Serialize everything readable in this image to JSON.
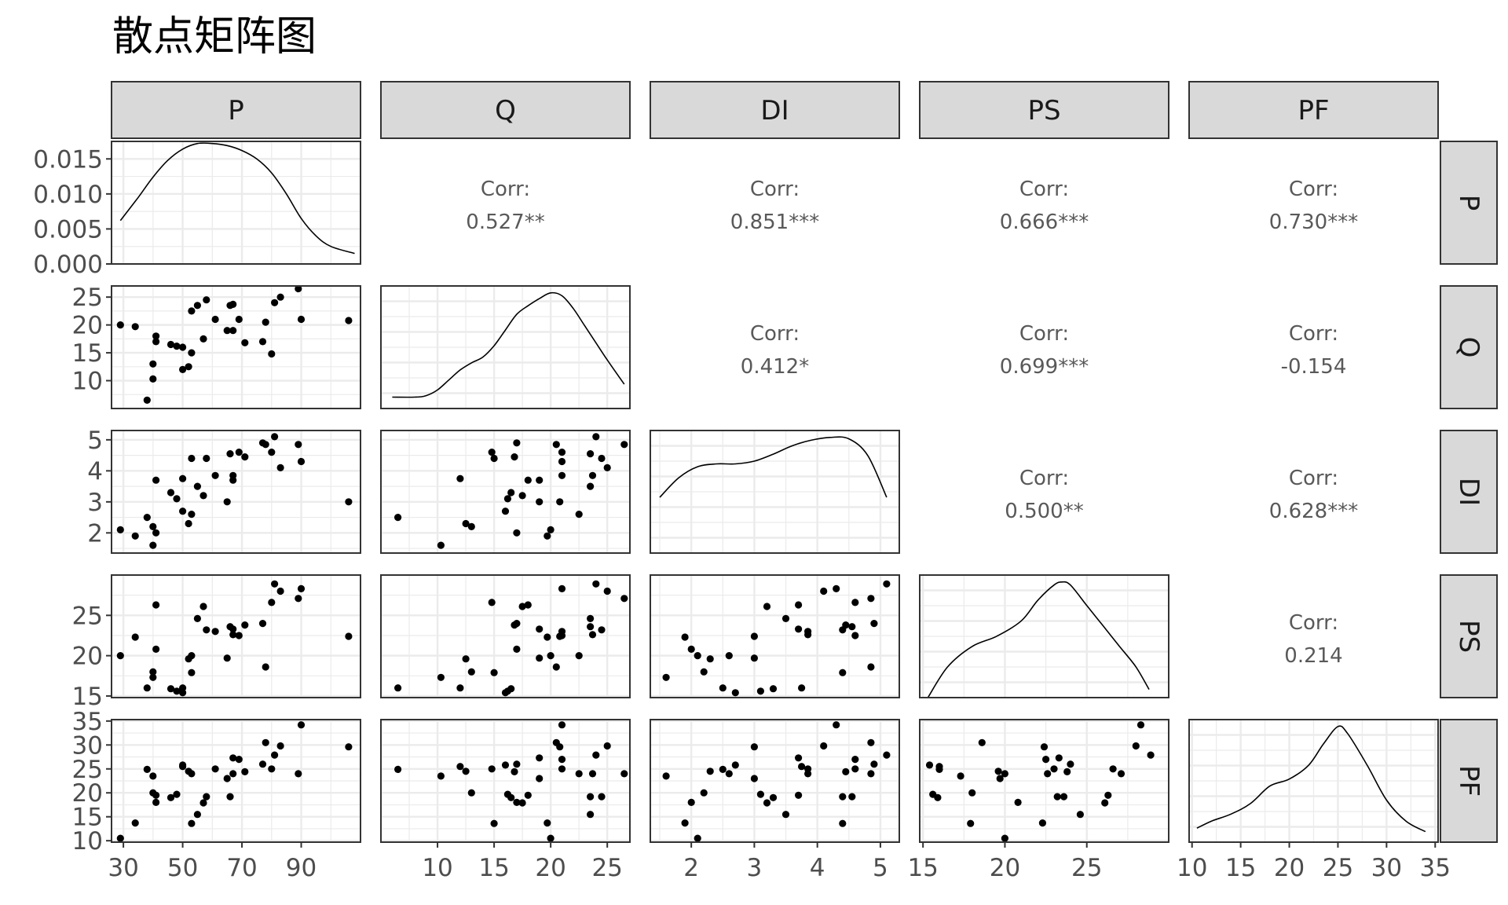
{
  "chart_data": {
    "type": "scatter",
    "title": "散点矩阵图",
    "variables": [
      "P",
      "Q",
      "DI",
      "PS",
      "PF"
    ],
    "grid": true,
    "strip_bg": "#d9d9d9",
    "panel_border": "#333333",
    "point_color": "#000000",
    "axes": {
      "P": {
        "range": [
          26,
          110
        ],
        "ticks": [
          30,
          50,
          70,
          90
        ],
        "tick_labels": [
          "30",
          "50",
          "70",
          "90"
        ]
      },
      "Q": {
        "range": [
          5,
          27
        ],
        "ticks": [
          10,
          15,
          20,
          25
        ],
        "tick_labels": [
          "10",
          "15",
          "20",
          "25"
        ]
      },
      "DI": {
        "range": [
          1.35,
          5.3
        ],
        "ticks": [
          2,
          3,
          4,
          5
        ],
        "tick_labels": [
          "2",
          "3",
          "4",
          "5"
        ]
      },
      "PS": {
        "range": [
          14.8,
          30.0
        ],
        "ticks": [
          15,
          20,
          25
        ],
        "tick_labels": [
          "15",
          "20",
          "25"
        ]
      },
      "PF": {
        "range": [
          9.7,
          35.3
        ],
        "ticks": [
          10,
          15,
          20,
          25,
          30,
          35
        ],
        "tick_labels": [
          "10",
          "15",
          "20",
          "25",
          "30",
          "35"
        ]
      }
    },
    "density_axis": {
      "range": [
        0,
        0.0175
      ],
      "ticks": [
        0,
        0.005,
        0.01,
        0.015
      ],
      "tick_labels": [
        "0.000",
        "0.005",
        "0.010",
        "0.015"
      ]
    },
    "correlations": [
      {
        "row": "P",
        "col": "Q",
        "label": "Corr:",
        "value": "0.527**"
      },
      {
        "row": "P",
        "col": "DI",
        "label": "Corr:",
        "value": "0.851***"
      },
      {
        "row": "P",
        "col": "PS",
        "label": "Corr:",
        "value": "0.666***"
      },
      {
        "row": "P",
        "col": "PF",
        "label": "Corr:",
        "value": "0.730***"
      },
      {
        "row": "Q",
        "col": "DI",
        "label": "Corr:",
        "value": "0.412*"
      },
      {
        "row": "Q",
        "col": "PS",
        "label": "Corr:",
        "value": "0.699***"
      },
      {
        "row": "Q",
        "col": "PF",
        "label": "Corr:",
        "value": "-0.154"
      },
      {
        "row": "DI",
        "col": "PS",
        "label": "Corr:",
        "value": "0.500**"
      },
      {
        "row": "DI",
        "col": "PF",
        "label": "Corr:",
        "value": "0.628***"
      },
      {
        "row": "PS",
        "col": "PF",
        "label": "Corr:",
        "value": "0.214"
      }
    ],
    "densities": {
      "P": {
        "x": [
          29,
          35,
          40,
          45,
          50,
          55,
          60,
          65,
          70,
          75,
          80,
          85,
          90,
          95,
          100,
          108
        ],
        "y": [
          0.0062,
          0.0095,
          0.0124,
          0.0148,
          0.0164,
          0.0172,
          0.0172,
          0.0169,
          0.0162,
          0.015,
          0.013,
          0.01,
          0.0065,
          0.004,
          0.0025,
          0.0015
        ]
      },
      "Q": {
        "x": [
          6,
          8,
          9,
          10,
          11,
          12,
          13,
          14,
          15,
          16,
          17,
          18,
          19,
          20,
          21,
          22,
          23,
          24,
          25,
          26.5
        ],
        "y": [
          0.04,
          0.04,
          0.045,
          0.065,
          0.1,
          0.135,
          0.16,
          0.18,
          0.22,
          0.275,
          0.33,
          0.36,
          0.385,
          0.405,
          0.395,
          0.35,
          0.29,
          0.23,
          0.17,
          0.085
        ]
      },
      "DI": {
        "x": [
          1.5,
          1.8,
          2.1,
          2.4,
          2.7,
          3.0,
          3.3,
          3.6,
          3.9,
          4.2,
          4.5,
          4.8,
          5.1
        ],
        "y": [
          0.2,
          0.27,
          0.31,
          0.32,
          0.32,
          0.33,
          0.355,
          0.385,
          0.405,
          0.415,
          0.41,
          0.35,
          0.2
        ]
      },
      "PS": {
        "x": [
          15.3,
          16.5,
          18,
          19.5,
          21,
          22,
          23,
          23.5,
          24,
          25,
          26,
          27,
          28,
          28.8
        ],
        "y": [
          0.0,
          0.03,
          0.05,
          0.06,
          0.075,
          0.095,
          0.11,
          0.113,
          0.11,
          0.09,
          0.07,
          0.05,
          0.03,
          0.008
        ]
      },
      "PF": {
        "x": [
          10.5,
          12,
          14,
          16,
          18,
          20,
          22,
          23.5,
          25,
          26,
          28,
          30,
          32,
          34
        ],
        "y": [
          0.02,
          0.03,
          0.04,
          0.055,
          0.08,
          0.09,
          0.11,
          0.14,
          0.165,
          0.155,
          0.11,
          0.06,
          0.03,
          0.015
        ]
      }
    },
    "observations": {
      "P": [
        29,
        34,
        38,
        40,
        40,
        41,
        41,
        46,
        48,
        50,
        50,
        52,
        53,
        53,
        55,
        57,
        58,
        61,
        65,
        66,
        67,
        67,
        69,
        71,
        77,
        78,
        80,
        81,
        83,
        89,
        90,
        106
      ],
      "Q": [
        20.0,
        19.7,
        6.5,
        10.3,
        13.0,
        17.0,
        18.0,
        16.5,
        16.2,
        12.0,
        16.0,
        12.5,
        15.0,
        22.5,
        23.5,
        17.5,
        24.5,
        21.0,
        19.0,
        23.5,
        19.0,
        23.7,
        21.0,
        16.8,
        17.0,
        20.5,
        14.8,
        24.0,
        25.0,
        26.5,
        21.0,
        20.8
      ],
      "DI": [
        2.1,
        1.9,
        2.5,
        1.6,
        2.2,
        2.0,
        3.7,
        3.3,
        3.1,
        3.75,
        2.7,
        2.3,
        4.4,
        2.6,
        3.5,
        3.2,
        4.4,
        3.85,
        3.0,
        4.55,
        3.7,
        3.85,
        4.6,
        4.45,
        4.9,
        4.85,
        4.6,
        5.1,
        4.1,
        4.85,
        4.3,
        3.0
      ],
      "PS": [
        20.0,
        22.3,
        16.0,
        17.3,
        18.0,
        20.8,
        26.3,
        15.9,
        15.6,
        16.0,
        15.4,
        19.6,
        17.9,
        20.0,
        24.6,
        26.1,
        23.2,
        23.0,
        19.7,
        23.6,
        23.3,
        22.6,
        22.5,
        23.8,
        24.0,
        18.6,
        26.6,
        28.9,
        28.0,
        27.1,
        28.3,
        22.4
      ],
      "PF": [
        10.5,
        13.7,
        24.9,
        23.5,
        20.0,
        18.0,
        19.5,
        19.0,
        19.7,
        25.5,
        25.8,
        24.5,
        13.6,
        24.0,
        15.5,
        17.9,
        19.2,
        25.0,
        23.0,
        19.2,
        27.3,
        24.0,
        27.0,
        24.4,
        26.0,
        30.5,
        25.0,
        27.9,
        29.8,
        24.0,
        34.2,
        29.6
      ]
    }
  }
}
